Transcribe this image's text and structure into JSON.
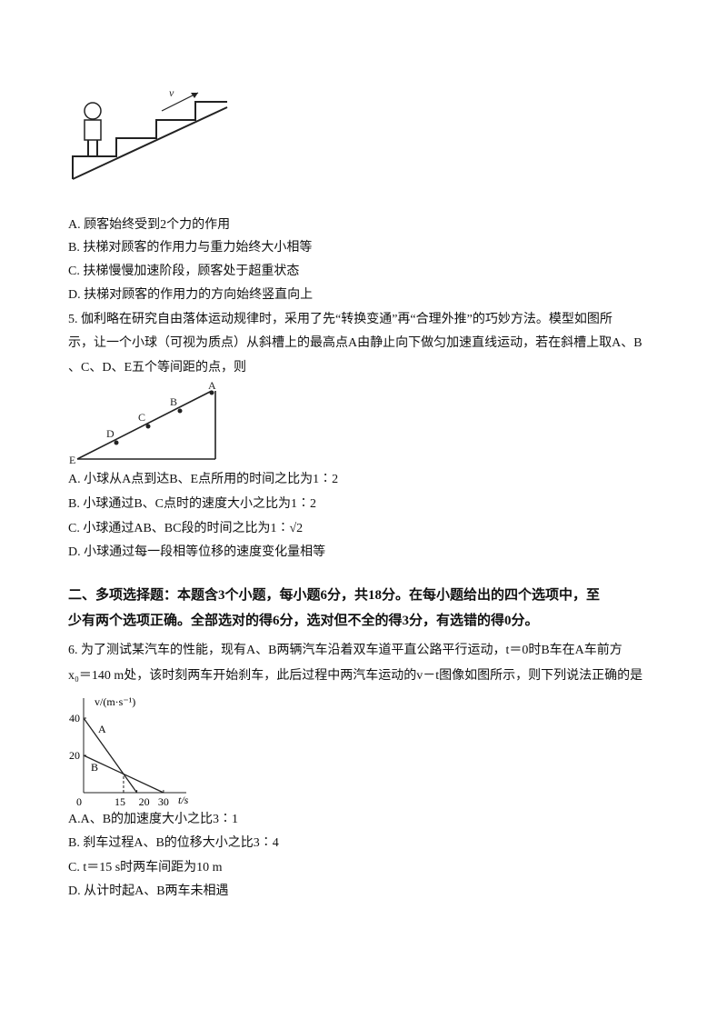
{
  "q4": {
    "figure": {
      "v_label": "v"
    },
    "options": [
      "A. 顾客始终受到2个力的作用",
      "B. 扶梯对顾客的作用力与重力始终大小相等",
      "C. 扶梯慢慢加速阶段，顾客处于超重状态",
      "D. 扶梯对顾客的作用力的方向始终竖直向上"
    ]
  },
  "q5": {
    "stem": [
      "5. 伽利略在研究自由落体运动规律时，采用了先“转换变通”再“合理外推”的巧妙方法。模型如图所",
      "示，让一个小球（可视为质点）从斜槽上的最高点A由静止向下做匀加速直线运动，若在斜槽上取A、B",
      "、C、D、E五个等间距的点，则"
    ],
    "figure": {
      "points": [
        "A",
        "B",
        "C",
        "D",
        "E"
      ]
    },
    "options": [
      "A. 小球从A点到达B、E点所用的时间之比为1∶2",
      "B. 小球通过B、C点时的速度大小之比为1∶2",
      "C. 小球通过AB、BC段的时间之比为1∶√2",
      "D. 小球通过每一段相等位移的速度变化量相等"
    ]
  },
  "section2": {
    "heading": [
      "二、多项选择题：本题含3个小题，每小题6分，共18分。在每小题给出的四个选项中，至",
      "少有两个选项正确。全部选对的得6分，选对但不全的得3分，有选错的得0分。"
    ]
  },
  "q6": {
    "stem": [
      "6. 为了测试某汽车的性能，现有A、B两辆汽车沿着双车道平直公路平行运动，t＝0时B车在A车前方",
      "x₀＝140 m处，该时刻两车开始刹车，此后过程中两汽车运动的v－t图像如图所示，则下列说法正确的是"
    ],
    "figure": {
      "ylabel": "v/(m·s⁻¹)",
      "xlabel": "t/s",
      "origin": 0,
      "yticks": [
        40,
        20
      ],
      "xticks": [
        15,
        20,
        30
      ],
      "series": [
        {
          "name": "A",
          "x": [
            0,
            20
          ],
          "y": [
            40,
            0
          ]
        },
        {
          "name": "B",
          "x": [
            0,
            30
          ],
          "y": [
            20,
            0
          ]
        }
      ]
    },
    "options": [
      "A.A、B的加速度大小之比3∶1",
      "B. 刹车过程A、B的位移大小之比3∶4",
      "C. t＝15 s时两车间距为10 m",
      "D. 从计时起A、B两车未相遇"
    ]
  }
}
